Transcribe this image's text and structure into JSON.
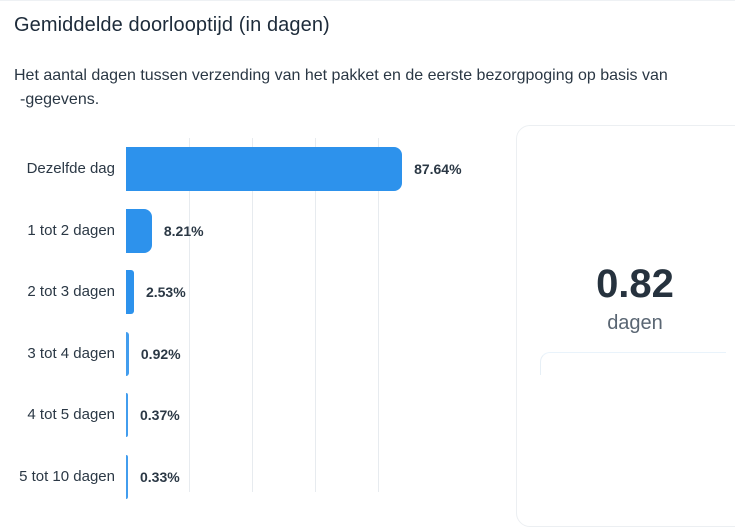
{
  "header": {
    "title": "Gemiddelde doorlooptijd (in dagen)",
    "subtitle_line1": "Het aantal dagen tussen verzending van het pakket en de eerste bezorgpoging op basis van",
    "subtitle_line2": "-gegevens."
  },
  "colors": {
    "bar": "#2d92ec",
    "text": "#1f2d3a",
    "gridline": "#e7ebef"
  },
  "chart_data": {
    "type": "bar",
    "orientation": "horizontal",
    "categories": [
      "Dezelfde dag",
      "1 tot 2 dagen",
      "2 tot 3 dagen",
      "3 tot 4 dagen",
      "4 tot 5 dagen",
      "5 tot 10 dagen"
    ],
    "values": [
      87.64,
      8.21,
      2.53,
      0.92,
      0.37,
      0.33
    ],
    "value_labels": [
      "87.64%",
      "8.21%",
      "2.53%",
      "0.92%",
      "0.37%",
      "0.33%"
    ],
    "xlim": [
      0,
      100
    ],
    "grid": true
  },
  "summary": {
    "value": "0.82",
    "unit": "dagen"
  }
}
